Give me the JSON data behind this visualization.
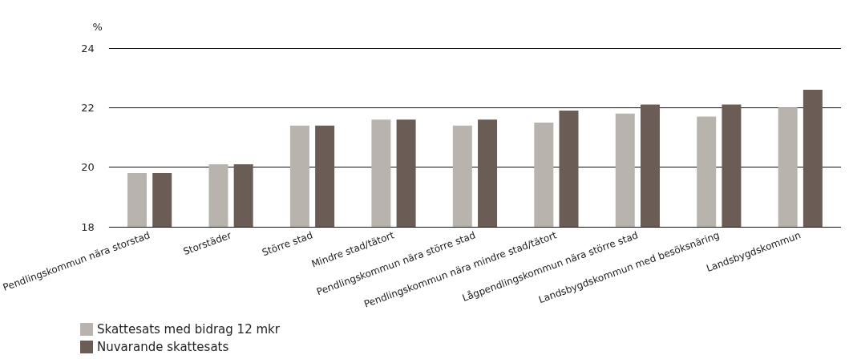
{
  "chart_data": {
    "type": "bar",
    "ylabel": "%",
    "categories": [
      "Pendlingskommun nära storstad",
      "Storstäder",
      "Större stad",
      "Mindre stad/tätort",
      "Pendlingskommun nära större stad",
      "Pendlingskommun nära mindre stad/tätort",
      "Lågpendlingskommun nära större stad",
      "Landsbygdskommun med besöksnäring",
      "Landsbygdskommun"
    ],
    "series": [
      {
        "name": "Skattesats med bidrag 12 mkr",
        "color": "#b8b3ad",
        "values": [
          19.8,
          20.1,
          21.4,
          21.6,
          21.4,
          21.5,
          21.8,
          21.7,
          22.0
        ]
      },
      {
        "name": "Nuvarande skattesats",
        "color": "#6b5d55",
        "values": [
          19.8,
          20.1,
          21.4,
          21.6,
          21.6,
          21.9,
          22.1,
          22.1,
          22.6
        ]
      }
    ],
    "ylim": [
      18,
      24
    ],
    "yticks": [
      18,
      20,
      22,
      24
    ],
    "grid": "y",
    "legend": "bottom left"
  }
}
